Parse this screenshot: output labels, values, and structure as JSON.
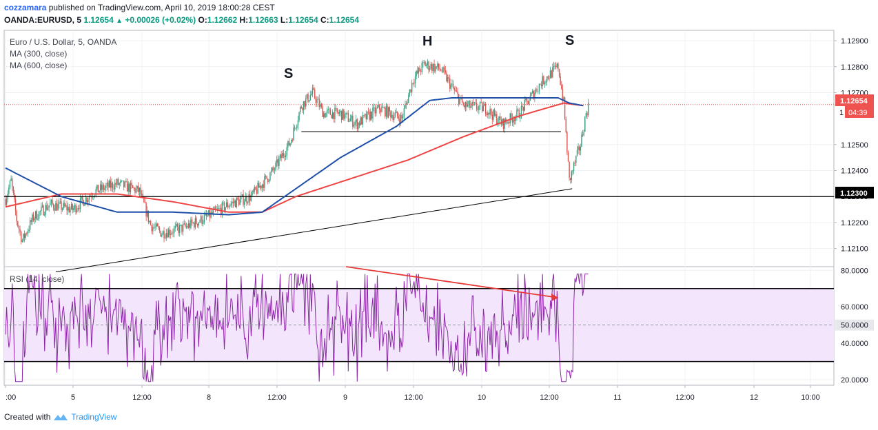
{
  "header": {
    "user": "cozzamara",
    "published_text": "published on TradingView.com, April 10, 2019 18:00:28 CEST",
    "symbol": "OANDA:EURUSD, 5",
    "last": "1.12654",
    "change": "+0.00026 (+0.02%)",
    "o_label": "O:",
    "o": "1.12662",
    "h_label": "H:",
    "h": "1.12663",
    "l_label": "L:",
    "l": "1.12654",
    "c_label": "C:",
    "c": "1.12654"
  },
  "legend": {
    "title": "Euro / U.S. Dollar, 5, OANDA",
    "ma1": "MA (300, close)",
    "ma2": "MA (600, close)",
    "rsi": "RSI (14, close)"
  },
  "annotations": {
    "s1": "S",
    "h": "H",
    "s2": "S"
  },
  "price_badges": {
    "last": "1.12654",
    "countdown": "04:39",
    "level": "1.12300",
    "partial": "1"
  },
  "footer": {
    "created_with": "Created with",
    "brand": "TradingView"
  },
  "colors": {
    "ma300": "#1e4fa8",
    "ma600": "#ef4444",
    "rsi_line": "#8e24aa",
    "rsi_band": "#f3e5fb",
    "candle_up": "#3a9b7f",
    "candle_down": "#d9534f",
    "last_price": "#ef5350",
    "level_badge": "#000000"
  },
  "chart_data": [
    {
      "type": "candlestick",
      "title": "Euro / U.S. Dollar, 5, OANDA",
      "x_ticks": [
        ":00",
        "5",
        "12:00",
        "8",
        "12:00",
        "9",
        "12:00",
        "10",
        "12:00",
        "11",
        "12:00",
        "12",
        "10:00"
      ],
      "y_ticks": [
        "1.12100",
        "1.12200",
        "1.12300",
        "1.12400",
        "1.12500",
        "1.12700",
        "1.12800",
        "1.12900"
      ],
      "ylim": [
        1.1203,
        1.1294
      ],
      "price_path": [
        [
          0,
          1.1229
        ],
        [
          1,
          1.1236
        ],
        [
          2,
          1.1221
        ],
        [
          3,
          1.1213
        ],
        [
          5,
          1.1222
        ],
        [
          8,
          1.1227
        ],
        [
          12,
          1.1225
        ],
        [
          16,
          1.1232
        ],
        [
          20,
          1.1235
        ],
        [
          24,
          1.1232
        ],
        [
          26,
          1.1219
        ],
        [
          28,
          1.1216
        ],
        [
          32,
          1.1218
        ],
        [
          36,
          1.1222
        ],
        [
          40,
          1.1227
        ],
        [
          44,
          1.123
        ],
        [
          48,
          1.124
        ],
        [
          51,
          1.1251
        ],
        [
          53,
          1.1265
        ],
        [
          55,
          1.127
        ],
        [
          57,
          1.1262
        ],
        [
          60,
          1.1262
        ],
        [
          63,
          1.1258
        ],
        [
          67,
          1.1264
        ],
        [
          71,
          1.126
        ],
        [
          73,
          1.1275
        ],
        [
          75,
          1.1281
        ],
        [
          78,
          1.1279
        ],
        [
          80,
          1.1272
        ],
        [
          82,
          1.1265
        ],
        [
          86,
          1.1264
        ],
        [
          89,
          1.1258
        ],
        [
          92,
          1.1262
        ],
        [
          96,
          1.1274
        ],
        [
          99,
          1.128
        ],
        [
          100,
          1.1266
        ],
        [
          101,
          1.1236
        ],
        [
          103,
          1.125
        ],
        [
          104,
          1.1262
        ],
        [
          104.5,
          1.12654
        ]
      ],
      "ma300": [
        [
          0,
          1.1241
        ],
        [
          10,
          1.123
        ],
        [
          20,
          1.1224
        ],
        [
          30,
          1.1224
        ],
        [
          40,
          1.1223
        ],
        [
          46,
          1.1224
        ],
        [
          52,
          1.1233
        ],
        [
          60,
          1.1245
        ],
        [
          70,
          1.1257
        ],
        [
          76,
          1.1267
        ],
        [
          80,
          1.1268
        ],
        [
          90,
          1.1268
        ],
        [
          95,
          1.1268
        ],
        [
          99,
          1.1268
        ],
        [
          101,
          1.1266
        ],
        [
          103.5,
          1.1265
        ]
      ],
      "ma600": [
        [
          0,
          1.1226
        ],
        [
          10,
          1.1231
        ],
        [
          20,
          1.1231
        ],
        [
          30,
          1.1228
        ],
        [
          40,
          1.1224
        ],
        [
          46,
          1.1224
        ],
        [
          52,
          1.123
        ],
        [
          62,
          1.1237
        ],
        [
          72,
          1.1244
        ],
        [
          82,
          1.1253
        ],
        [
          92,
          1.1261
        ],
        [
          100,
          1.1266
        ],
        [
          103.5,
          1.1265
        ]
      ],
      "horizontal_level": 1.123,
      "last_price": 1.12654,
      "neckline": [
        [
          53,
          1.1255
        ],
        [
          99.5,
          1.1255
        ]
      ],
      "trendline": [
        [
          9,
          1.1201
        ],
        [
          101.5,
          1.1233
        ]
      ],
      "labels": [
        {
          "text": "S",
          "x": 52,
          "y": 1.1281
        },
        {
          "text": "H",
          "x": 76,
          "y": 1.129
        },
        {
          "text": "S",
          "x": 102,
          "y": 1.129
        }
      ]
    },
    {
      "type": "line",
      "title": "RSI (14, close)",
      "y_ticks": [
        "20.0000",
        "40.0000",
        "50.0000",
        "60.0000",
        "80.0000"
      ],
      "ylim": [
        17,
        82
      ],
      "overbought": 70,
      "oversold": 30,
      "middle": 50,
      "arrow": [
        [
          61,
          82
        ],
        [
          99,
          65
        ]
      ]
    }
  ]
}
